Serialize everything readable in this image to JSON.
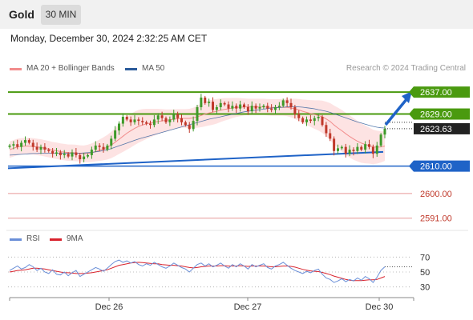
{
  "header": {
    "title": "Gold",
    "timeframe": "30 MIN"
  },
  "datetime": "Monday, December 30, 2024 2:32:25 AM CET",
  "legend": {
    "bb_label": "MA 20 + Bollinger Bands",
    "ma50_label": "MA 50",
    "copyright": "Research © 2024 Trading Central",
    "rsi_label": "RSI",
    "rsi_ma_label": "9MA"
  },
  "colors": {
    "bb": "#f28c8c",
    "band_fill": "#fde0e0",
    "ma50": "#2a5a9a",
    "up": "#3e9a2a",
    "down": "#c0392b",
    "resistance": "#4a9a0f",
    "support": "#1f63c7",
    "minor_support": "#e69999",
    "rsi": "#6a8fd8",
    "rsi_ma": "#d9232d"
  },
  "chart_data": [
    {
      "type": "candlestick",
      "title": "Gold",
      "timeframe": "30 MIN",
      "x_ticks": [
        "Dec 26",
        "Dec 27",
        "Dec 30"
      ],
      "ylim": [
        2588,
        2642
      ],
      "last_price": 2623.63,
      "levels": [
        {
          "value": 2637.0,
          "label": "2637.00",
          "kind": "resistance"
        },
        {
          "value": 2629.0,
          "label": "2629.00",
          "kind": "resistance"
        },
        {
          "value": 2610.0,
          "label": "2610.00",
          "kind": "support"
        },
        {
          "value": 2600.0,
          "label": "2600.00",
          "kind": "minor"
        },
        {
          "value": 2591.0,
          "label": "2591.00",
          "kind": "minor"
        }
      ],
      "price_label": "2623.63",
      "candles_close": [
        2617.5,
        2618,
        2617,
        2618.5,
        2619.5,
        2618.5,
        2617,
        2616,
        2617,
        2616,
        2615.5,
        2614.5,
        2615,
        2614,
        2614.5,
        2613.5,
        2615,
        2614,
        2612.5,
        2613.5,
        2614,
        2616,
        2617.5,
        2617,
        2616,
        2617.5,
        2620,
        2623,
        2625.5,
        2628,
        2627,
        2626,
        2627,
        2626.5,
        2626,
        2625.5,
        2625,
        2627,
        2628.5,
        2627.5,
        2626,
        2627,
        2629,
        2627.5,
        2626,
        2625,
        2623.5,
        2626.5,
        2631.5,
        2635,
        2633,
        2633.5,
        2630.5,
        2631.5,
        2633,
        2632.5,
        2631,
        2632,
        2631,
        2632.5,
        2631.5,
        2630,
        2632,
        2631,
        2631.5,
        2632,
        2631,
        2630.5,
        2631.5,
        2632,
        2634,
        2633,
        2631.5,
        2629,
        2627.5,
        2626,
        2627,
        2626.5,
        2627.5,
        2628,
        2625,
        2622,
        2620,
        2615.5,
        2616.5,
        2617,
        2614.5,
        2616,
        2615.5,
        2617,
        2616,
        2618,
        2617,
        2614.5,
        2617.5,
        2621.5,
        2623.6
      ],
      "ma20": [
        2616,
        2616.5,
        2617,
        2617.2,
        2617.3,
        2617.3,
        2617.2,
        2617,
        2616.8,
        2616.5,
        2616.2,
        2615.8,
        2615.6,
        2615.3,
        2615.1,
        2614.9,
        2614.9,
        2614.8,
        2614.6,
        2614.5,
        2614.6,
        2614.9,
        2615.3,
        2615.8,
        2616.3,
        2616.9,
        2617.7,
        2618.7,
        2619.8,
        2620.9,
        2622,
        2622.9,
        2623.8,
        2624.5,
        2625,
        2625.4,
        2625.7,
        2626,
        2626.3,
        2626.5,
        2626.7,
        2626.9,
        2627.1,
        2627.3,
        2627.4,
        2627.4,
        2627.4,
        2627.6,
        2628,
        2628.5,
        2629,
        2629.4,
        2629.7,
        2630,
        2630.4,
        2630.7,
        2630.9,
        2631.2,
        2631.4,
        2631.5,
        2631.6,
        2631.6,
        2631.6,
        2631.6,
        2631.6,
        2631.6,
        2631.5,
        2631.4,
        2631.4,
        2631.4,
        2631.5,
        2631.4,
        2631.2,
        2630.9,
        2630.5,
        2630,
        2629.6,
        2629.2,
        2628.8,
        2628.5,
        2628,
        2627.2,
        2626.3,
        2625,
        2623.9,
        2622.9,
        2621.8,
        2620.8,
        2619.9,
        2619.1,
        2618.4,
        2617.9,
        2617.5,
        2617,
        2616.9,
        2617,
        2617.3
      ],
      "ma50": [
        2614,
        2614.1,
        2614.2,
        2614.3,
        2614.4,
        2614.5,
        2614.6,
        2614.6,
        2614.7,
        2614.7,
        2614.7,
        2614.7,
        2614.7,
        2614.7,
        2614.7,
        2614.7,
        2614.7,
        2614.7,
        2614.7,
        2614.8,
        2614.9,
        2615,
        2615.2,
        2615.4,
        2615.7,
        2616,
        2616.4,
        2616.9,
        2617.4,
        2617.9,
        2618.4,
        2618.9,
        2619.4,
        2619.9,
        2620.3,
        2620.7,
        2621.1,
        2621.5,
        2621.9,
        2622.3,
        2622.7,
        2623.1,
        2623.5,
        2623.9,
        2624.3,
        2624.7,
        2625.1,
        2625.5,
        2625.9,
        2626.3,
        2626.7,
        2627.1,
        2627.4,
        2627.7,
        2628,
        2628.3,
        2628.6,
        2628.9,
        2629.2,
        2629.5,
        2629.8,
        2630,
        2630.2,
        2630.4,
        2630.6,
        2630.8,
        2631,
        2631.2,
        2631.3,
        2631.4,
        2631.5,
        2631.6,
        2631.7,
        2631.7,
        2631.6,
        2631.5,
        2631.3,
        2631.1,
        2630.9,
        2630.6,
        2630.3,
        2630,
        2629.6,
        2629.1,
        2628.6,
        2628.1,
        2627.6,
        2627.1,
        2626.6,
        2626.1,
        2625.7,
        2625.3,
        2624.9,
        2624.5,
        2624.2,
        2624,
        2623.9
      ],
      "bb_width": [
        3,
        3,
        3,
        3,
        3,
        3,
        3,
        3,
        3,
        3,
        3,
        3,
        3,
        3,
        3,
        3,
        3,
        3,
        3,
        3,
        3.2,
        3.4,
        3.6,
        3.9,
        4.2,
        4.5,
        4.8,
        5.1,
        5.4,
        5.7,
        6,
        6.1,
        6.1,
        6,
        5.8,
        5.5,
        5.2,
        4.9,
        4.6,
        4.3,
        4,
        3.8,
        3.6,
        3.5,
        3.4,
        3.4,
        3.5,
        3.7,
        4,
        4.3,
        4.5,
        4.6,
        4.6,
        4.5,
        4.3,
        4.1,
        3.9,
        3.7,
        3.5,
        3.3,
        3.1,
        3,
        3,
        3,
        3,
        3,
        3,
        3,
        3,
        3,
        3.1,
        3.2,
        3.4,
        3.7,
        4,
        4.3,
        4.6,
        4.9,
        5.2,
        5.5,
        5.9,
        6.3,
        6.7,
        7.1,
        7.4,
        7.6,
        7.7,
        7.7,
        7.6,
        7.4,
        7.2,
        6.9,
        6.6,
        6.3,
        6,
        5.7,
        5.4
      ]
    },
    {
      "type": "line",
      "title": "RSI",
      "ylim": [
        20,
        80
      ],
      "y_ticks": [
        70,
        50,
        30
      ],
      "series": [
        {
          "name": "RSI",
          "values": [
            52,
            55,
            58,
            54,
            56,
            60,
            57,
            52,
            55,
            50,
            48,
            53,
            47,
            46,
            50,
            45,
            49,
            52,
            44,
            47,
            50,
            53,
            56,
            54,
            51,
            55,
            60,
            64,
            66,
            63,
            65,
            62,
            64,
            60,
            58,
            61,
            59,
            63,
            60,
            57,
            55,
            58,
            62,
            59,
            56,
            54,
            50,
            55,
            60,
            62,
            58,
            61,
            57,
            59,
            62,
            58,
            55,
            60,
            57,
            61,
            58,
            54,
            60,
            57,
            59,
            61,
            56,
            54,
            58,
            60,
            63,
            59,
            55,
            52,
            50,
            48,
            51,
            49,
            52,
            54,
            47,
            42,
            40,
            36,
            38,
            41,
            37,
            40,
            38,
            42,
            39,
            44,
            41,
            36,
            43,
            52,
            57
          ]
        },
        {
          "name": "9MA",
          "values": [
            50,
            51,
            52,
            52.5,
            53,
            54,
            55,
            55,
            54.5,
            54,
            53,
            52,
            51,
            50,
            49,
            49,
            48.5,
            48,
            48,
            48,
            48.5,
            49,
            50,
            51,
            52,
            53,
            55,
            57,
            59,
            60,
            61,
            62,
            62.5,
            63,
            62.5,
            62,
            61.5,
            61,
            61,
            60,
            59.5,
            59,
            59,
            58.5,
            58,
            57,
            56,
            55.5,
            56,
            57,
            57.5,
            58,
            58,
            58,
            58.5,
            58.5,
            58,
            58,
            58,
            58.5,
            58,
            57.5,
            58,
            58,
            58,
            58,
            57.5,
            57,
            57,
            57.5,
            58,
            58,
            57.5,
            56.5,
            55,
            53.5,
            52.5,
            51.5,
            51,
            50.5,
            49.5,
            48,
            46.5,
            44.5,
            43,
            41.5,
            40,
            39,
            38.5,
            38.5,
            38.5,
            39,
            39.5,
            39.5,
            40,
            42,
            44
          ]
        }
      ]
    }
  ]
}
